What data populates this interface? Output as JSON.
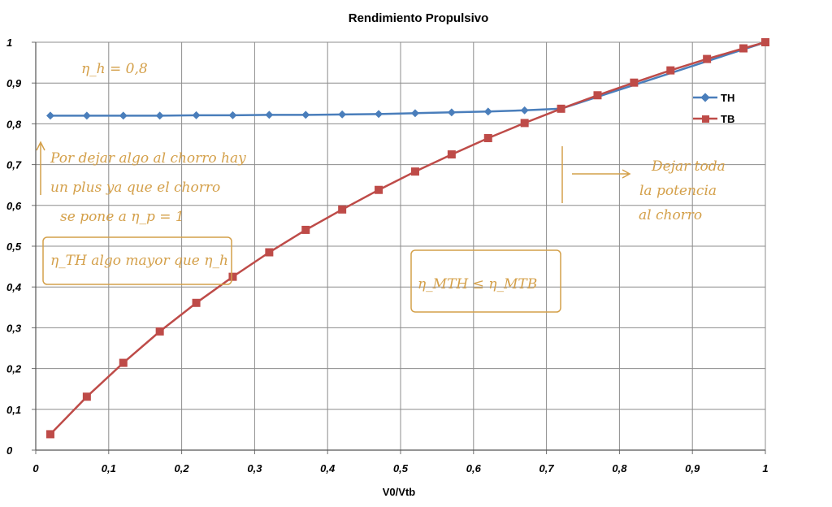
{
  "chart_data": {
    "type": "line",
    "title": "Rendimiento Propulsivo",
    "xlabel": "V0/Vtb",
    "ylabel": "",
    "xlim": [
      0,
      1
    ],
    "ylim": [
      0,
      1
    ],
    "x_ticks": [
      "0",
      "0,1",
      "0,2",
      "0,3",
      "0,4",
      "0,5",
      "0,6",
      "0,7",
      "0,8",
      "0,9",
      "1"
    ],
    "y_ticks": [
      "0",
      "0,1",
      "0,2",
      "0,3",
      "0,4",
      "0,5",
      "0,6",
      "0,7",
      "0,8",
      "0,9",
      "1"
    ],
    "grid": true,
    "legend_position": "right",
    "series": [
      {
        "name": "TH",
        "color": "#4a7ebb",
        "marker": "diamond",
        "points": [
          [
            0.02,
            0.82
          ],
          [
            0.07,
            0.82
          ],
          [
            0.12,
            0.82
          ],
          [
            0.17,
            0.82
          ],
          [
            0.22,
            0.821
          ],
          [
            0.27,
            0.821
          ],
          [
            0.32,
            0.822
          ],
          [
            0.37,
            0.822
          ],
          [
            0.42,
            0.823
          ],
          [
            0.47,
            0.824
          ],
          [
            0.52,
            0.826
          ],
          [
            0.57,
            0.828
          ],
          [
            0.62,
            0.83
          ],
          [
            0.67,
            0.833
          ],
          [
            0.72,
            0.837
          ],
          [
            1.0,
            1.0
          ]
        ]
      },
      {
        "name": "TB",
        "color": "#be4b48",
        "marker": "square",
        "points": [
          [
            0.02,
            0.039
          ],
          [
            0.07,
            0.131
          ],
          [
            0.12,
            0.214
          ],
          [
            0.17,
            0.291
          ],
          [
            0.22,
            0.361
          ],
          [
            0.27,
            0.425
          ],
          [
            0.32,
            0.485
          ],
          [
            0.37,
            0.54
          ],
          [
            0.42,
            0.59
          ],
          [
            0.47,
            0.638
          ],
          [
            0.52,
            0.683
          ],
          [
            0.57,
            0.725
          ],
          [
            0.62,
            0.765
          ],
          [
            0.67,
            0.802
          ],
          [
            0.72,
            0.837
          ],
          [
            0.77,
            0.87
          ],
          [
            0.82,
            0.901
          ],
          [
            0.87,
            0.931
          ],
          [
            0.92,
            0.959
          ],
          [
            0.97,
            0.985
          ],
          [
            1.0,
            1.0
          ]
        ]
      }
    ],
    "annotations": [
      "η_h = 0,8",
      "Por dejar algo al chorro hay",
      "un plus ya que el chorro",
      "se pone a η_p = 1",
      "η_TH algo mayor que η_h",
      "η_MTH ≤ η_MTB",
      "Dejar toda",
      "la potencia",
      "al chorro"
    ]
  }
}
